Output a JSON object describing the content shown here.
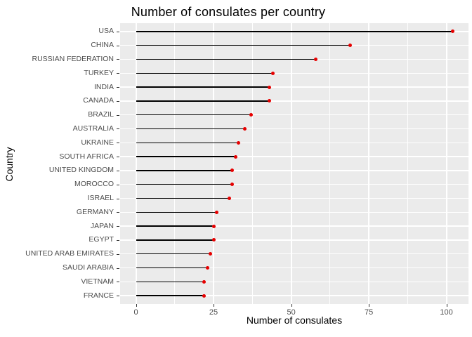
{
  "chart_data": {
    "type": "bar",
    "variant": "lollipop-horizontal",
    "title": "Number of consulates per country",
    "xlabel": "Number of consulates",
    "ylabel": "Country",
    "categories": [
      "USA",
      "CHINA",
      "RUSSIAN FEDERATION",
      "TURKEY",
      "INDIA",
      "CANADA",
      "BRAZIL",
      "AUSTRALIA",
      "UKRAINE",
      "SOUTH AFRICA",
      "UNITED KINGDOM",
      "MOROCCO",
      "ISRAEL",
      "GERMANY",
      "JAPAN",
      "EGYPT",
      "UNITED ARAB EMIRATES",
      "SAUDI ARABIA",
      "VIETNAM",
      "FRANCE"
    ],
    "values": [
      102,
      69,
      58,
      44,
      43,
      43,
      37,
      35,
      33,
      32,
      31,
      31,
      30,
      26,
      25,
      25,
      24,
      23,
      22,
      22
    ],
    "xlim": [
      -5.1,
      107.1
    ],
    "x_major_ticks": [
      0,
      25,
      50,
      75,
      100
    ],
    "x_tick_labels": [
      "0",
      "25",
      "50",
      "75",
      "100"
    ],
    "x_minor_gridlines": [
      12.5,
      37.5,
      62.5,
      87.5
    ],
    "grid": true,
    "legend": false,
    "colors": {
      "point": "#e60000",
      "stem": "#000000",
      "panel_background": "#ebebeb",
      "gridline": "#ffffff",
      "axis_text": "#4d4d4d",
      "axis_title": "#000000",
      "tick_mark": "#333333"
    }
  }
}
